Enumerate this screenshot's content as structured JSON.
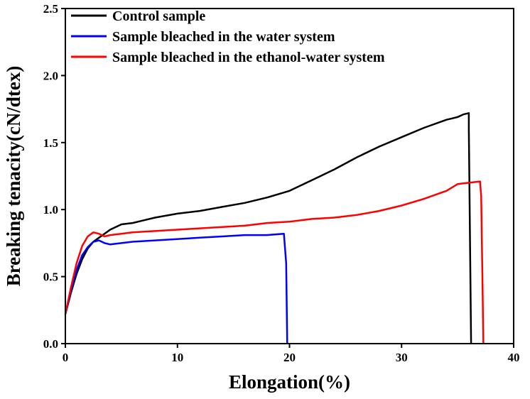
{
  "chart_data": {
    "type": "line",
    "xlabel": "Elongation(%)",
    "ylabel": "Breaking tenacity(cN/dtex)",
    "xlim": [
      0,
      40
    ],
    "ylim": [
      0,
      2.5
    ],
    "xticks": [
      0,
      10,
      20,
      30,
      40
    ],
    "yticks": [
      0.0,
      0.5,
      1.0,
      1.5,
      2.0,
      2.5
    ],
    "xtick_labels": [
      "0",
      "10",
      "20",
      "30",
      "40"
    ],
    "ytick_labels": [
      "0.0",
      "0.5",
      "1.0",
      "1.5",
      "2.0",
      "2.5"
    ],
    "grid": false,
    "legend_position": "top-left",
    "series": [
      {
        "name": "Control sample",
        "color": "#000000",
        "x": [
          0,
          0.5,
          1,
          1.5,
          2,
          2.5,
          3,
          3.5,
          4,
          5,
          6,
          7,
          8,
          10,
          12,
          14,
          16,
          18,
          20,
          22,
          24,
          26,
          28,
          30,
          32,
          34,
          35,
          35.5,
          36.0,
          36.0,
          36.2
        ],
        "y": [
          0.22,
          0.38,
          0.52,
          0.63,
          0.71,
          0.76,
          0.79,
          0.82,
          0.85,
          0.89,
          0.9,
          0.92,
          0.94,
          0.97,
          0.99,
          1.02,
          1.05,
          1.09,
          1.14,
          1.22,
          1.3,
          1.39,
          1.47,
          1.54,
          1.61,
          1.67,
          1.69,
          1.71,
          1.72,
          1.6,
          0.0
        ]
      },
      {
        "name": "Sample bleached in the water system",
        "color": "#0000ff",
        "x": [
          0,
          0.5,
          1,
          1.5,
          2,
          2.5,
          3,
          3.5,
          4,
          5,
          6,
          8,
          10,
          12,
          14,
          16,
          18,
          19.5,
          19.7,
          19.8
        ],
        "y": [
          0.22,
          0.4,
          0.55,
          0.66,
          0.72,
          0.76,
          0.77,
          0.75,
          0.74,
          0.75,
          0.76,
          0.77,
          0.78,
          0.79,
          0.8,
          0.81,
          0.81,
          0.82,
          0.6,
          0.0
        ]
      },
      {
        "name": "Sample bleached in the ethanol-water system",
        "color": "#ff0000",
        "x": [
          0,
          0.5,
          1,
          1.5,
          2,
          2.5,
          3,
          3.5,
          4,
          5,
          6,
          8,
          10,
          12,
          14,
          16,
          18,
          20,
          22,
          24,
          26,
          28,
          30,
          32,
          34,
          35,
          36,
          37,
          37.1,
          37.3
        ],
        "y": [
          0.22,
          0.42,
          0.6,
          0.73,
          0.8,
          0.83,
          0.82,
          0.8,
          0.81,
          0.82,
          0.83,
          0.84,
          0.85,
          0.86,
          0.87,
          0.88,
          0.9,
          0.91,
          0.93,
          0.94,
          0.96,
          0.99,
          1.03,
          1.08,
          1.14,
          1.19,
          1.2,
          1.21,
          1.1,
          0.0
        ]
      }
    ]
  }
}
